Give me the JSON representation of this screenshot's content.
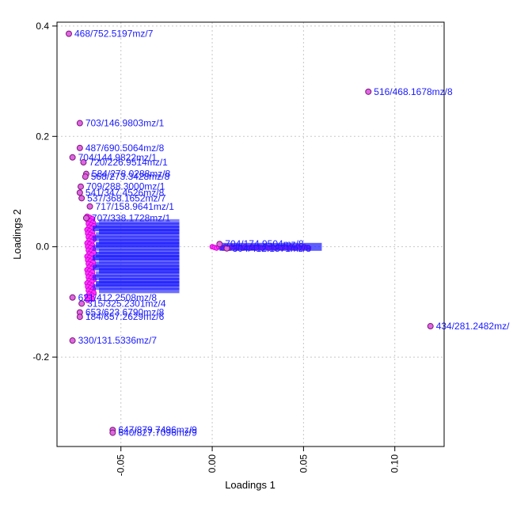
{
  "chart_data": {
    "type": "scatter",
    "title": "",
    "xlabel": "Loadings 1",
    "ylabel": "Loadings 2",
    "xlim": [
      -0.085,
      0.127
    ],
    "ylim": [
      -0.362,
      0.407
    ],
    "xticks": [
      -0.05,
      0.0,
      0.05,
      0.1
    ],
    "xtick_labels": [
      "-0.05",
      "0.00",
      "0.05",
      "0.10"
    ],
    "yticks": [
      -0.2,
      0.0,
      0.2,
      0.4
    ],
    "ytick_labels": [
      "-0.2",
      "0.0",
      "0.2",
      "0.4"
    ],
    "grid": true,
    "point_fill": "#e066e0",
    "point_edge": "#7a1a7a",
    "label_color": "#1a1aff",
    "grid_color": "#c8c8c8",
    "points": [
      {
        "x": -0.0785,
        "y": 0.386,
        "label": "468/752.5197mz/7"
      },
      {
        "x": 0.0855,
        "y": 0.281,
        "label": "516/468.1678mz/8"
      },
      {
        "x": -0.0725,
        "y": 0.224,
        "label": "703/146.9803mz/1"
      },
      {
        "x": -0.0725,
        "y": 0.179,
        "label": "487/690.5064mz/8"
      },
      {
        "x": -0.0765,
        "y": 0.162,
        "label": "704/144.9822mz/1"
      },
      {
        "x": -0.0705,
        "y": 0.153,
        "label": "720/226.9514mz/1"
      },
      {
        "x": -0.069,
        "y": 0.132,
        "label": "584/278.0288mz/8"
      },
      {
        "x": -0.0695,
        "y": 0.127,
        "label": "568/273.3428mz/8"
      },
      {
        "x": -0.072,
        "y": 0.109,
        "label": "709/288.3000mz/1"
      },
      {
        "x": -0.0725,
        "y": 0.098,
        "label": "541/347.4526mz/8"
      },
      {
        "x": -0.0715,
        "y": 0.088,
        "label": "537/368.1652mz/7"
      },
      {
        "x": -0.067,
        "y": 0.073,
        "label": "717/158.9641mz/1"
      },
      {
        "x": -0.069,
        "y": 0.052,
        "label": "707/338.1728mz/1"
      },
      {
        "x": -0.0765,
        "y": -0.092,
        "label": "621/412.2508mz/8"
      },
      {
        "x": -0.0715,
        "y": -0.103,
        "label": "315/325.2301mz/4"
      },
      {
        "x": -0.0725,
        "y": -0.119,
        "label": "653/623.6790mz/8"
      },
      {
        "x": -0.0725,
        "y": -0.127,
        "label": "184/657.2629mz/6"
      },
      {
        "x": -0.0765,
        "y": -0.17,
        "label": "330/131.5336mz/7"
      },
      {
        "x": 0.1195,
        "y": -0.144,
        "label": "434/281.2482mz/"
      },
      {
        "x": -0.0545,
        "y": -0.332,
        "label": "647/879.7496mz/9"
      },
      {
        "x": -0.0545,
        "y": -0.337,
        "label": "640/827.7096mz/9"
      },
      {
        "x": 0.004,
        "y": 0.005,
        "label": "704/174.9504mz/8"
      },
      {
        "x": 0.008,
        "y": -0.003,
        "label": "304/412.1871mz/8"
      }
    ]
  }
}
